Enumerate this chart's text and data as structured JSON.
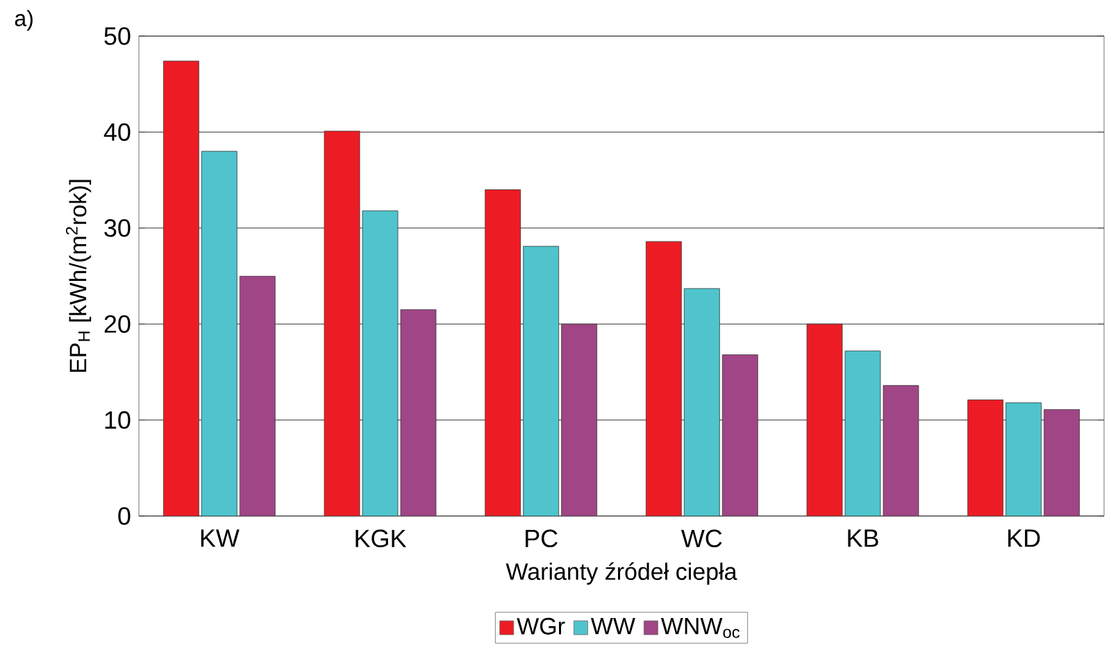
{
  "chart_data": {
    "type": "bar",
    "ylabel": "EP$_{H}$ [kWh/(m$^{2}$rok)]",
    "xlabel": "Warianty źródeł ciepła",
    "annotations": [
      "a)"
    ],
    "categories": [
      "KW",
      "KGK",
      "PC",
      "WC",
      "KB",
      "KD"
    ],
    "series": [
      {
        "name": "WGr",
        "color": "#ed1c24",
        "values": [
          47.4,
          40.1,
          34,
          28.6,
          20,
          12.1
        ]
      },
      {
        "name": "WW",
        "color": "#4fc4cc",
        "values": [
          38,
          31.8,
          28.1,
          23.7,
          17.2,
          11.8
        ]
      },
      {
        "name": "WNW$_{oc}$",
        "color": "#a04585",
        "values": [
          25,
          21.5,
          20,
          16.8,
          13.6,
          11.1
        ]
      }
    ],
    "ylim": [
      0,
      50
    ],
    "yticks": [
      0,
      10,
      20,
      30,
      40,
      50
    ],
    "grid": "y",
    "legend": "bottom"
  }
}
